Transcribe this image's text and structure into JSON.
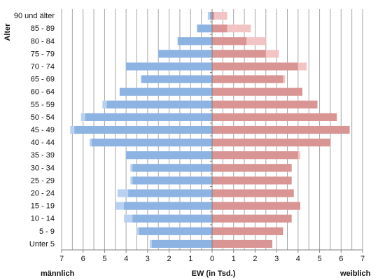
{
  "chart_data": {
    "type": "bar",
    "orientation": "horizontal",
    "subtype": "population-pyramid",
    "yaxis_title": "Alter",
    "xaxis_title": "EW (in Tsd.)",
    "left_label": "männlich",
    "right_label": "weiblich",
    "xlim": [
      -7,
      7
    ],
    "x_ticks": [
      7,
      6,
      5,
      4,
      3,
      2,
      1,
      0,
      1,
      2,
      3,
      4,
      5,
      6,
      7
    ],
    "grid": true,
    "categories": [
      "Unter 5",
      "5 - 9",
      "10 - 14",
      "15 - 19",
      "20 - 24",
      "25 - 29",
      "30 - 34",
      "35 - 39",
      "40 - 44",
      "45 - 49",
      "50 - 54",
      "55 - 59",
      "60 - 64",
      "65 - 69",
      "70 - 74",
      "75 - 79",
      "80 - 84",
      "85 - 89",
      "90 und älter"
    ],
    "series": [
      {
        "values_male": [
          2.8,
          3.4,
          3.7,
          4.1,
          3.9,
          3.7,
          3.7,
          4.0,
          5.6,
          6.4,
          5.9,
          4.9,
          4.3,
          3.3,
          4.0,
          2.5,
          1.6,
          0.7,
          0.1
        ],
        "values_female": [
          2.8,
          3.3,
          3.7,
          4.1,
          3.8,
          3.7,
          3.7,
          4.0,
          5.5,
          6.4,
          5.8,
          4.9,
          4.2,
          3.3,
          4.0,
          2.5,
          1.6,
          0.7,
          0.1
        ]
      },
      {
        "values_male": [
          2.9,
          3.5,
          4.1,
          4.5,
          4.4,
          3.8,
          3.8,
          4.0,
          5.7,
          6.6,
          6.1,
          5.1,
          4.3,
          3.3,
          4.0,
          2.5,
          1.6,
          0.7,
          0.2
        ],
        "values_female": [
          2.8,
          3.3,
          3.7,
          4.1,
          3.8,
          3.7,
          3.7,
          4.1,
          5.5,
          6.4,
          5.8,
          4.9,
          4.2,
          3.4,
          4.4,
          3.1,
          2.5,
          1.8,
          0.7
        ]
      }
    ],
    "colors": {
      "male": "#8db3e2",
      "male_light": "#b9d1f0",
      "female": "#d99594",
      "female_light": "#f2c4c4",
      "grid": "#a6a6a6",
      "axis": "#808080"
    }
  }
}
